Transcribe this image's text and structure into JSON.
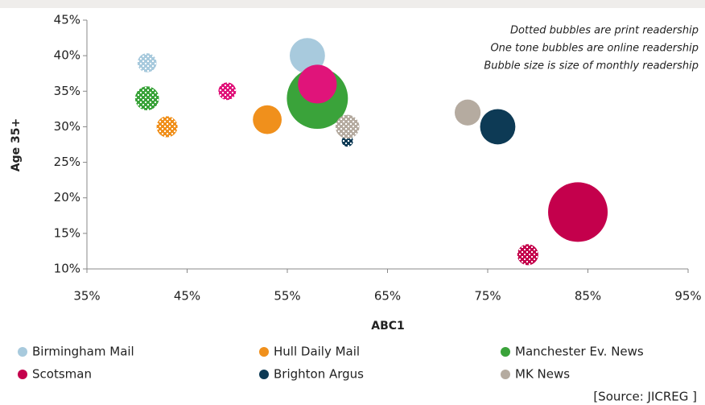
{
  "chart_data": {
    "type": "bubble",
    "x_label": "ABC1",
    "y_label": "Age 35+",
    "annotations": [
      "Dotted bubbles are print readership",
      "One tone bubbles are online readership",
      "Bubble size is size of monthly readership"
    ],
    "source": "[Source: JICREG ]",
    "xlim": [
      35,
      95
    ],
    "ylim": [
      10,
      45
    ],
    "xticks": [
      {
        "value": 35,
        "label": "35%"
      },
      {
        "value": 45,
        "label": "45%"
      },
      {
        "value": 55,
        "label": "55%"
      },
      {
        "value": 65,
        "label": "65%"
      },
      {
        "value": 75,
        "label": "75%"
      },
      {
        "value": 85,
        "label": "85%"
      },
      {
        "value": 95,
        "label": "95%"
      }
    ],
    "yticks": [
      {
        "value": 10,
        "label": "10%"
      },
      {
        "value": 15,
        "label": "15%"
      },
      {
        "value": 20,
        "label": "20%"
      },
      {
        "value": 25,
        "label": "25%"
      },
      {
        "value": 30,
        "label": "30%"
      },
      {
        "value": 35,
        "label": "35%"
      },
      {
        "value": 40,
        "label": "40%"
      },
      {
        "value": 45,
        "label": "45%"
      }
    ],
    "series": [
      {
        "name": "Birmingham Mail",
        "color": "#a8cadd",
        "marker": [
          "dotted",
          "solid"
        ],
        "x": [
          41,
          57
        ],
        "y": [
          39,
          40
        ],
        "size": [
          14,
          48
        ]
      },
      {
        "name": "Hull Daily Mail",
        "color": "#f0901c",
        "marker": [
          "dotted",
          "solid"
        ],
        "x": [
          43,
          53
        ],
        "y": [
          30,
          31
        ],
        "size": [
          17,
          32
        ]
      },
      {
        "name": "Manchester Ev. News",
        "color": "#3aa33a",
        "marker": [
          "dotted",
          "solid"
        ],
        "x": [
          41,
          58
        ],
        "y": [
          34,
          34
        ],
        "size": [
          22,
          144
        ]
      },
      {
        "name": "Scotsman",
        "color": "#c4004c",
        "marker": [
          "dotted",
          "solid"
        ],
        "x": [
          79,
          84
        ],
        "y": [
          12,
          18
        ],
        "size": [
          17,
          137
        ]
      },
      {
        "name": "Brighton Argus",
        "color": "#0d3a55",
        "marker": [
          "dotted",
          "solid"
        ],
        "x": [
          61,
          76
        ],
        "y": [
          28,
          30
        ],
        "size": [
          5,
          48
        ]
      },
      {
        "name": "MK News",
        "color": "#b5aba0",
        "marker": [
          "dotted",
          "solid"
        ],
        "x": [
          61,
          73
        ],
        "y": [
          30,
          32
        ],
        "size": [
          22,
          26
        ]
      },
      {
        "color": "#e0147a",
        "marker": [
          "dotted",
          "solid"
        ],
        "x": [
          49,
          58
        ],
        "y": [
          35,
          36
        ],
        "size": [
          12,
          58
        ]
      }
    ]
  }
}
